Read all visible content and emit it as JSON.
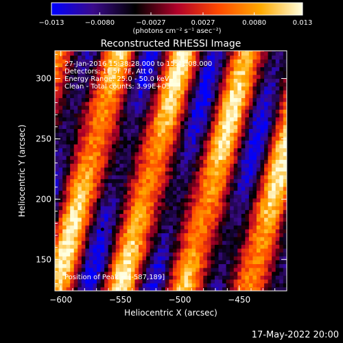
{
  "chart_data": {
    "type": "heatmap",
    "title": "Reconstructed RHESSI Image",
    "xlabel": "Heliocentric X (arcsec)",
    "ylabel": "Heliocentric Y (arcsec)",
    "xlim": [
      -605,
      -410
    ],
    "ylim": [
      124,
      323
    ],
    "x_ticks": [
      -600,
      -550,
      -500,
      -450
    ],
    "y_ticks": [
      150,
      200,
      250,
      300
    ],
    "x_tick_labels": [
      "−600",
      "−550",
      "−500",
      "−450"
    ],
    "y_tick_labels": [
      "150",
      "200",
      "250",
      "300"
    ],
    "colorbar": {
      "min": -0.013,
      "max": 0.013,
      "tick_values": [
        -0.013,
        -0.008,
        -0.0027,
        0.0027,
        0.008,
        0.013
      ],
      "tick_labels": [
        "−0.013",
        "−0.0080",
        "−0.0027",
        "0.0027",
        "0.0080",
        "0.013"
      ],
      "unit_label": "(photons cm⁻² s⁻¹ asec⁻²)",
      "colors": [
        "#0000ff",
        "#3a0a8a",
        "#000000",
        "#b0002a",
        "#ff4a00",
        "#ffaa00",
        "#ffffe0"
      ]
    },
    "stripes": {
      "orientation": "diagonal, lower-left to upper-right",
      "peak_position": [
        -587,
        189
      ],
      "bright_ridge_x_at_y_189": [
        -587,
        -533,
        -480,
        -427
      ]
    },
    "annotations": {
      "time_range": "27-Jan-2016 15:38:28.000 to 15:41:08.000",
      "detectors": "Detectors: 1F 5F 7F, Att 0",
      "energy_range": "Energy Range: 25.0 - 50.0 keV",
      "clean": "Clean - Total counts: 3.99E+03",
      "peak": "Position of Peak = [-587,189]"
    }
  },
  "footer": {
    "date": "17-May-2022 20:00"
  }
}
